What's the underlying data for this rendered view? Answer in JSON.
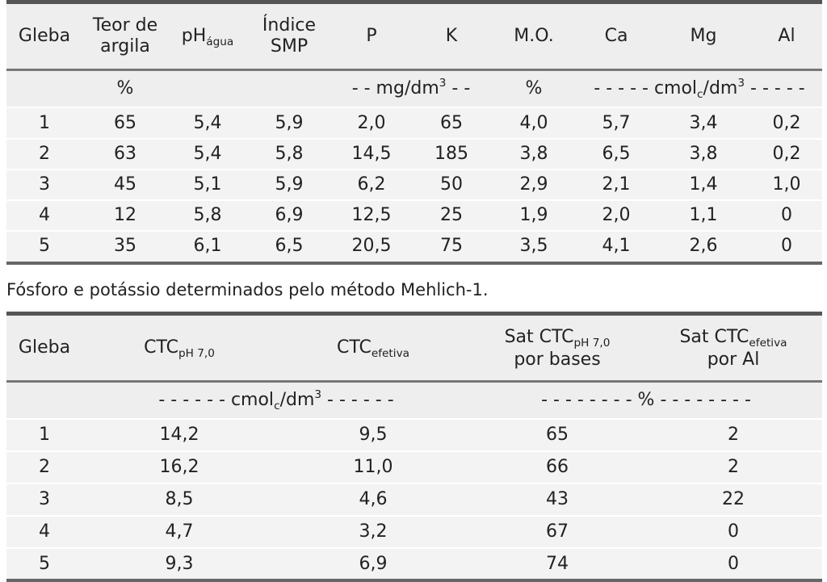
{
  "table1": {
    "headers": {
      "gleba": "Gleba",
      "argila_line1": "Teor de",
      "argila_line2": "argila",
      "ph_main": "pH",
      "ph_sub": "água",
      "smp_line1": "Índice",
      "smp_line2": "SMP",
      "p": "P",
      "k": "K",
      "mo": "M.O.",
      "ca": "Ca",
      "mg": "Mg",
      "al": "Al"
    },
    "units": {
      "argila": "%",
      "pk_prefix": "- - mg/dm",
      "pk_sup": "3",
      "pk_suffix": " - -",
      "mo": "%",
      "cmol_prefix": "- - - - - cmol",
      "cmol_sub": "c",
      "cmol_mid": "/dm",
      "cmol_sup": "3",
      "cmol_suffix": " - - - - -"
    },
    "rows": [
      [
        "1",
        "65",
        "5,4",
        "5,9",
        "2,0",
        "65",
        "4,0",
        "5,7",
        "3,4",
        "0,2"
      ],
      [
        "2",
        "63",
        "5,4",
        "5,8",
        "14,5",
        "185",
        "3,8",
        "6,5",
        "3,8",
        "0,2"
      ],
      [
        "3",
        "45",
        "5,1",
        "5,9",
        "6,2",
        "50",
        "2,9",
        "2,1",
        "1,4",
        "1,0"
      ],
      [
        "4",
        "12",
        "5,8",
        "6,9",
        "12,5",
        "25",
        "1,9",
        "2,0",
        "1,1",
        "0"
      ],
      [
        "5",
        "35",
        "6,1",
        "6,5",
        "20,5",
        "75",
        "3,5",
        "4,1",
        "2,6",
        "0"
      ]
    ]
  },
  "note": "Fósforo e potássio determinados pelo método Mehlich-1.",
  "table2": {
    "headers": {
      "gleba": "Gleba",
      "ctc_ph": "CTC",
      "ctc_ph_sub": "pH 7,0",
      "ctc_ef": "CTC",
      "ctc_ef_sub": "efetiva",
      "sat_bases_line1": "Sat CTC",
      "sat_bases_sub": "pH 7,0",
      "sat_bases_line2": "por bases",
      "sat_al_line1": "Sat CTC",
      "sat_al_sub": "efetiva",
      "sat_al_line2": "por Al"
    },
    "units": {
      "cmol_prefix": "- - - - - - cmol",
      "cmol_sub": "c",
      "cmol_mid": "/dm",
      "cmol_sup": "3",
      "cmol_suffix": " - - - - - -",
      "pct": "- - - - - - - - % - - - - - - - -"
    },
    "rows": [
      [
        "1",
        "14,2",
        "9,5",
        "65",
        "2"
      ],
      [
        "2",
        "16,2",
        "11,0",
        "66",
        "2"
      ],
      [
        "3",
        "8,5",
        "4,6",
        "43",
        "22"
      ],
      [
        "4",
        "4,7",
        "3,2",
        "67",
        "0"
      ],
      [
        "5",
        "9,3",
        "6,9",
        "74",
        "0"
      ]
    ]
  }
}
